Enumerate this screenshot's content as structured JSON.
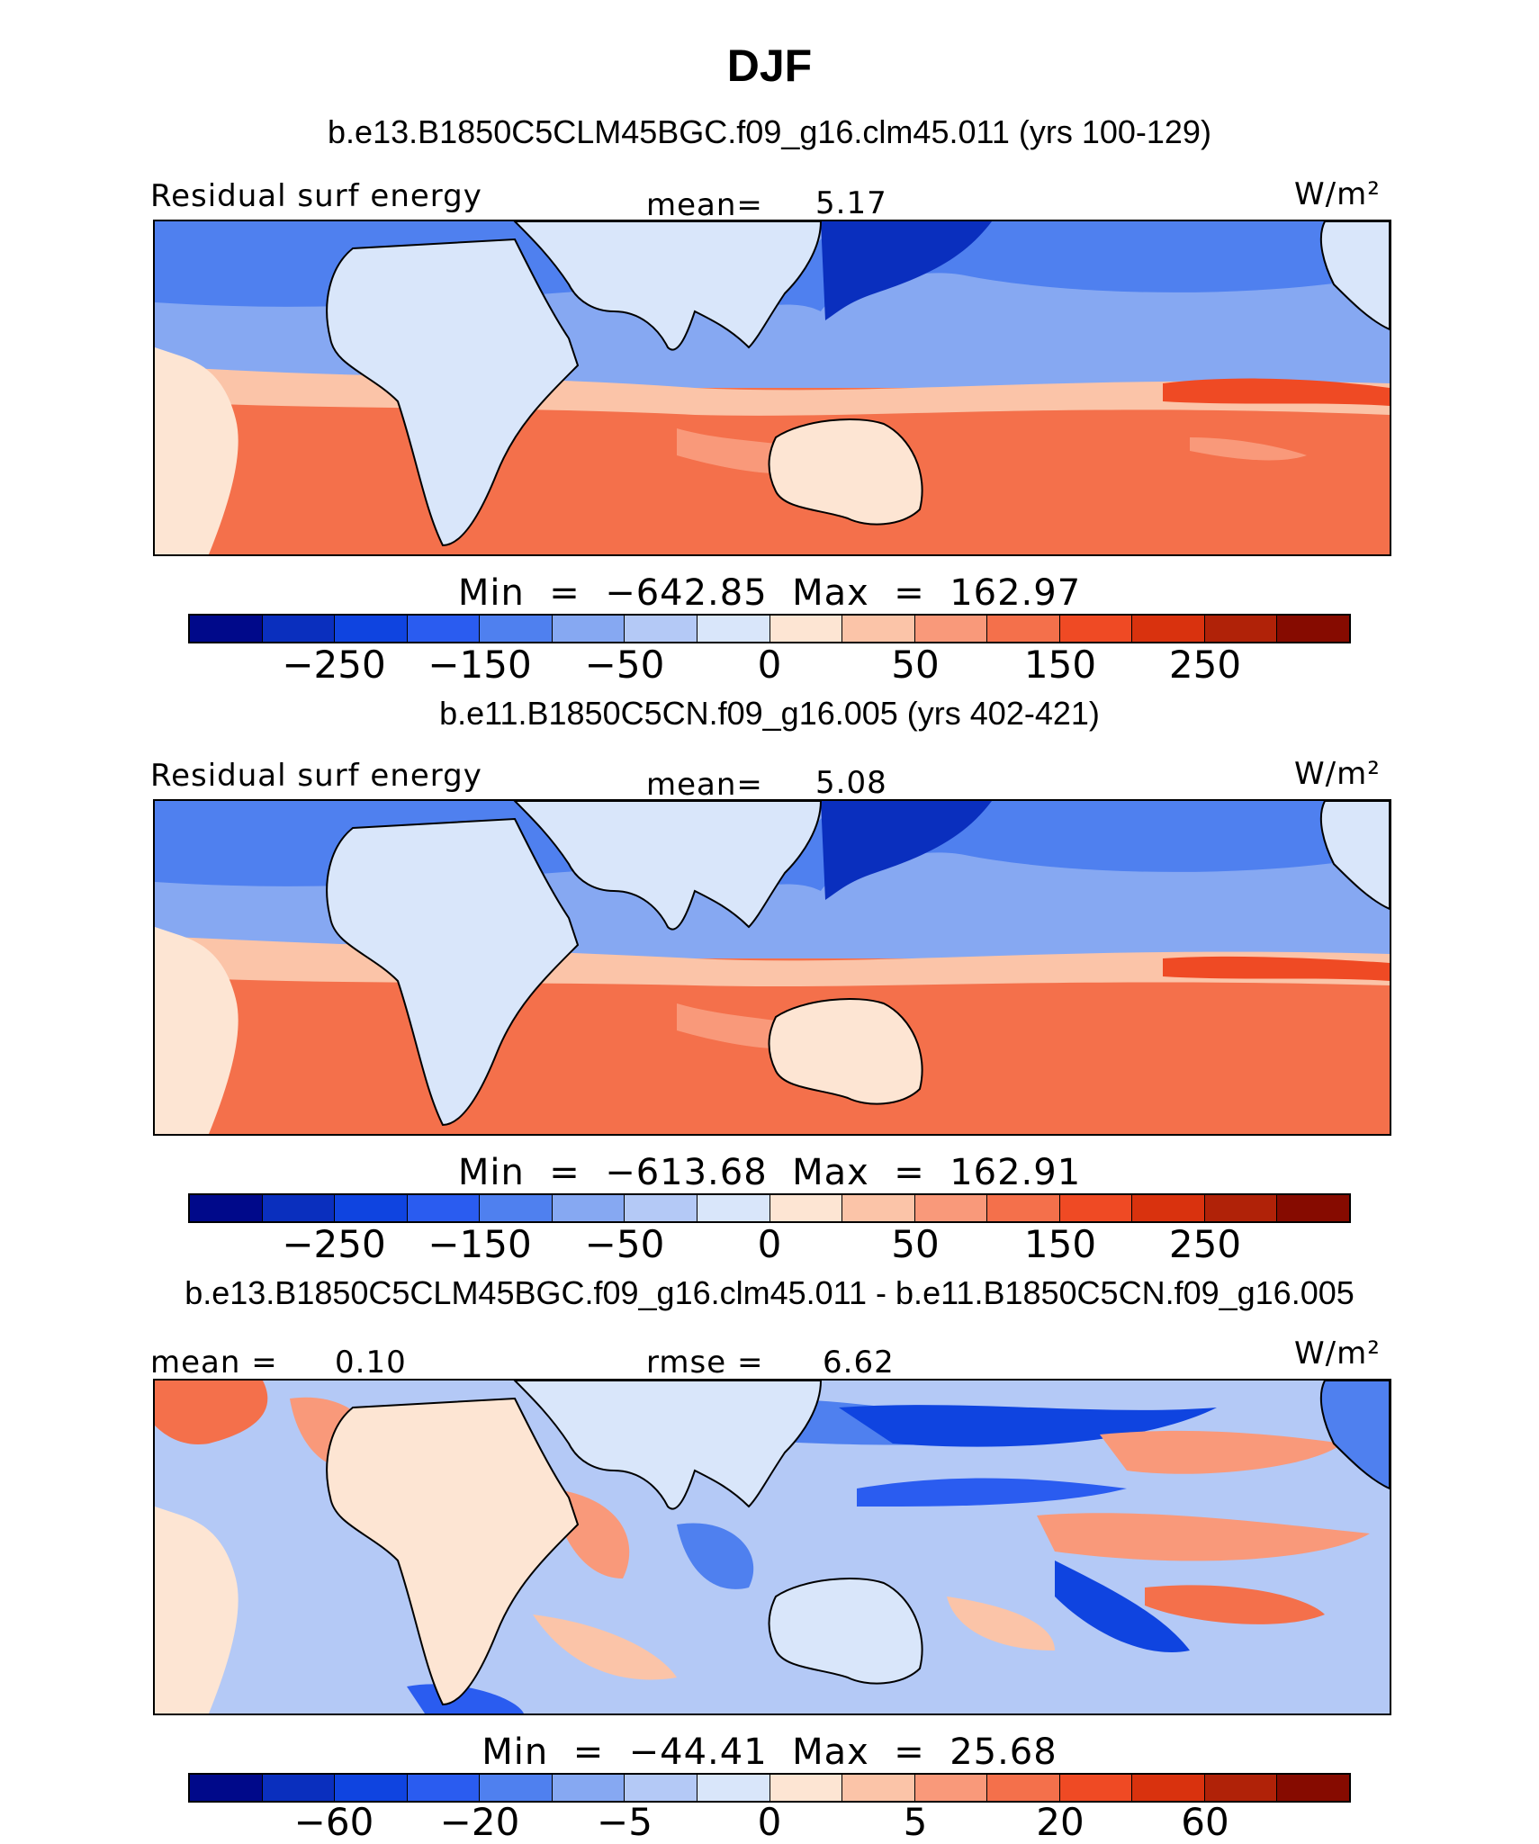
{
  "page": {
    "title": "DJF"
  },
  "panels": [
    {
      "case": "b.e13.B1850C5CLM45BGC.f09_g16.clm45.011 (yrs 100-129)",
      "left_label": "Residual surf energy",
      "center_label": "mean=",
      "center_value": "5.17",
      "units": "W/m²",
      "min_label": "Min",
      "min_value": "−642.85",
      "max_label": "Max",
      "max_value": "162.97",
      "colorbar_ticks": [
        "−250",
        "−150",
        "−50",
        "0",
        "50",
        "150",
        "250"
      ]
    },
    {
      "case": "b.e11.B1850C5CN.f09_g16.005 (yrs 402-421)",
      "left_label": "Residual surf energy",
      "center_label": "mean=",
      "center_value": "5.08",
      "units": "W/m²",
      "min_label": "Min",
      "min_value": "−613.68",
      "max_label": "Max",
      "max_value": "162.91",
      "colorbar_ticks": [
        "−250",
        "−150",
        "−50",
        "0",
        "50",
        "150",
        "250"
      ]
    },
    {
      "case": "b.e13.B1850C5CLM45BGC.f09_g16.clm45.011 - b.e11.B1850C5CN.f09_g16.005",
      "left_label": "mean =",
      "left_value": "0.10",
      "center_label": "rmse =",
      "center_value": "6.62",
      "units": "W/m²",
      "min_label": "Min",
      "min_value": "−44.41",
      "max_label": "Max",
      "max_value": "25.68",
      "colorbar_ticks": [
        "−60",
        "−20",
        "−5",
        "0",
        "5",
        "20",
        "60"
      ]
    }
  ],
  "colorbar_colors": [
    "#00098a",
    "#0a2fbe",
    "#0f44e0",
    "#2a5cf0",
    "#4f80ef",
    "#86a8f2",
    "#b4c9f6",
    "#d9e6fa",
    "#fde5d3",
    "#fbc4a8",
    "#f9997a",
    "#f4704b",
    "#ef4a24",
    "#d9320e",
    "#b02208",
    "#860b00"
  ]
}
